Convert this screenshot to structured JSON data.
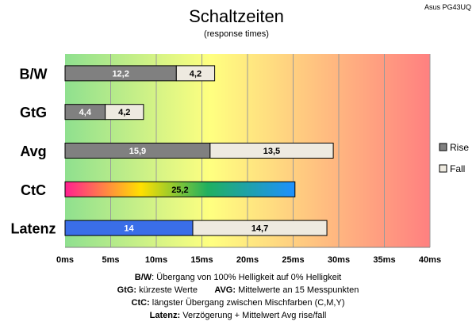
{
  "chart_data": {
    "type": "bar",
    "title": "Schaltzeiten",
    "subtitle": "(response times)",
    "device": "Asus PG43UQ",
    "categories": [
      "B/W",
      "GtG",
      "Avg",
      "CtC",
      "Latenz"
    ],
    "series": [
      {
        "name": "Rise",
        "values": [
          12.2,
          4.4,
          15.9,
          null,
          null
        ]
      },
      {
        "name": "Fall",
        "values": [
          4.2,
          4.2,
          13.5,
          null,
          null
        ]
      }
    ],
    "single_bars": [
      {
        "category": "CtC",
        "value": 25.2,
        "label": "25,2"
      },
      {
        "category": "Latenz",
        "value": 14,
        "label": "14"
      },
      {
        "category": "Latenz",
        "value": 14.7,
        "label": "14,7",
        "stacked_on": 14
      }
    ],
    "bar_labels": {
      "B/W": [
        "12,2",
        "4,2"
      ],
      "GtG": [
        "4,4",
        "4,2"
      ],
      "Avg": [
        "15,9",
        "13,5"
      ]
    },
    "xlim": [
      0,
      40
    ],
    "xticks": [
      "0ms",
      "5ms",
      "10ms",
      "15ms",
      "20ms",
      "25ms",
      "30ms",
      "35ms",
      "40ms"
    ],
    "legend": {
      "placement": "right",
      "entries": [
        "Rise",
        "Fall"
      ]
    },
    "grid": true,
    "colors": {
      "rise": "#808080",
      "fall": "#eeeae0",
      "latenz": "#3a6ee8",
      "bg_green": "#8fe08f",
      "bg_yellow": "#ffff80",
      "bg_red": "#ff8080"
    }
  },
  "footer": {
    "line1_key": "B/W",
    "line1_text": ":  Übergang von 100% Helligkeit auf 0% Helligkeit",
    "line2a_key": "GtG:",
    "line2a_text": " kürzeste  Werte",
    "line2b_key": "AVG:",
    "line2b_text": " Mittelwerte  an 15 Messpunkten",
    "line3_key": "CtC:",
    "line3_text": " längster Übergang  zwischen Mischfarben  (C,M,Y)",
    "line4_key": "Latenz:",
    "line4_text": " Verzögerung  + Mittelwert  Avg rise/fall"
  }
}
